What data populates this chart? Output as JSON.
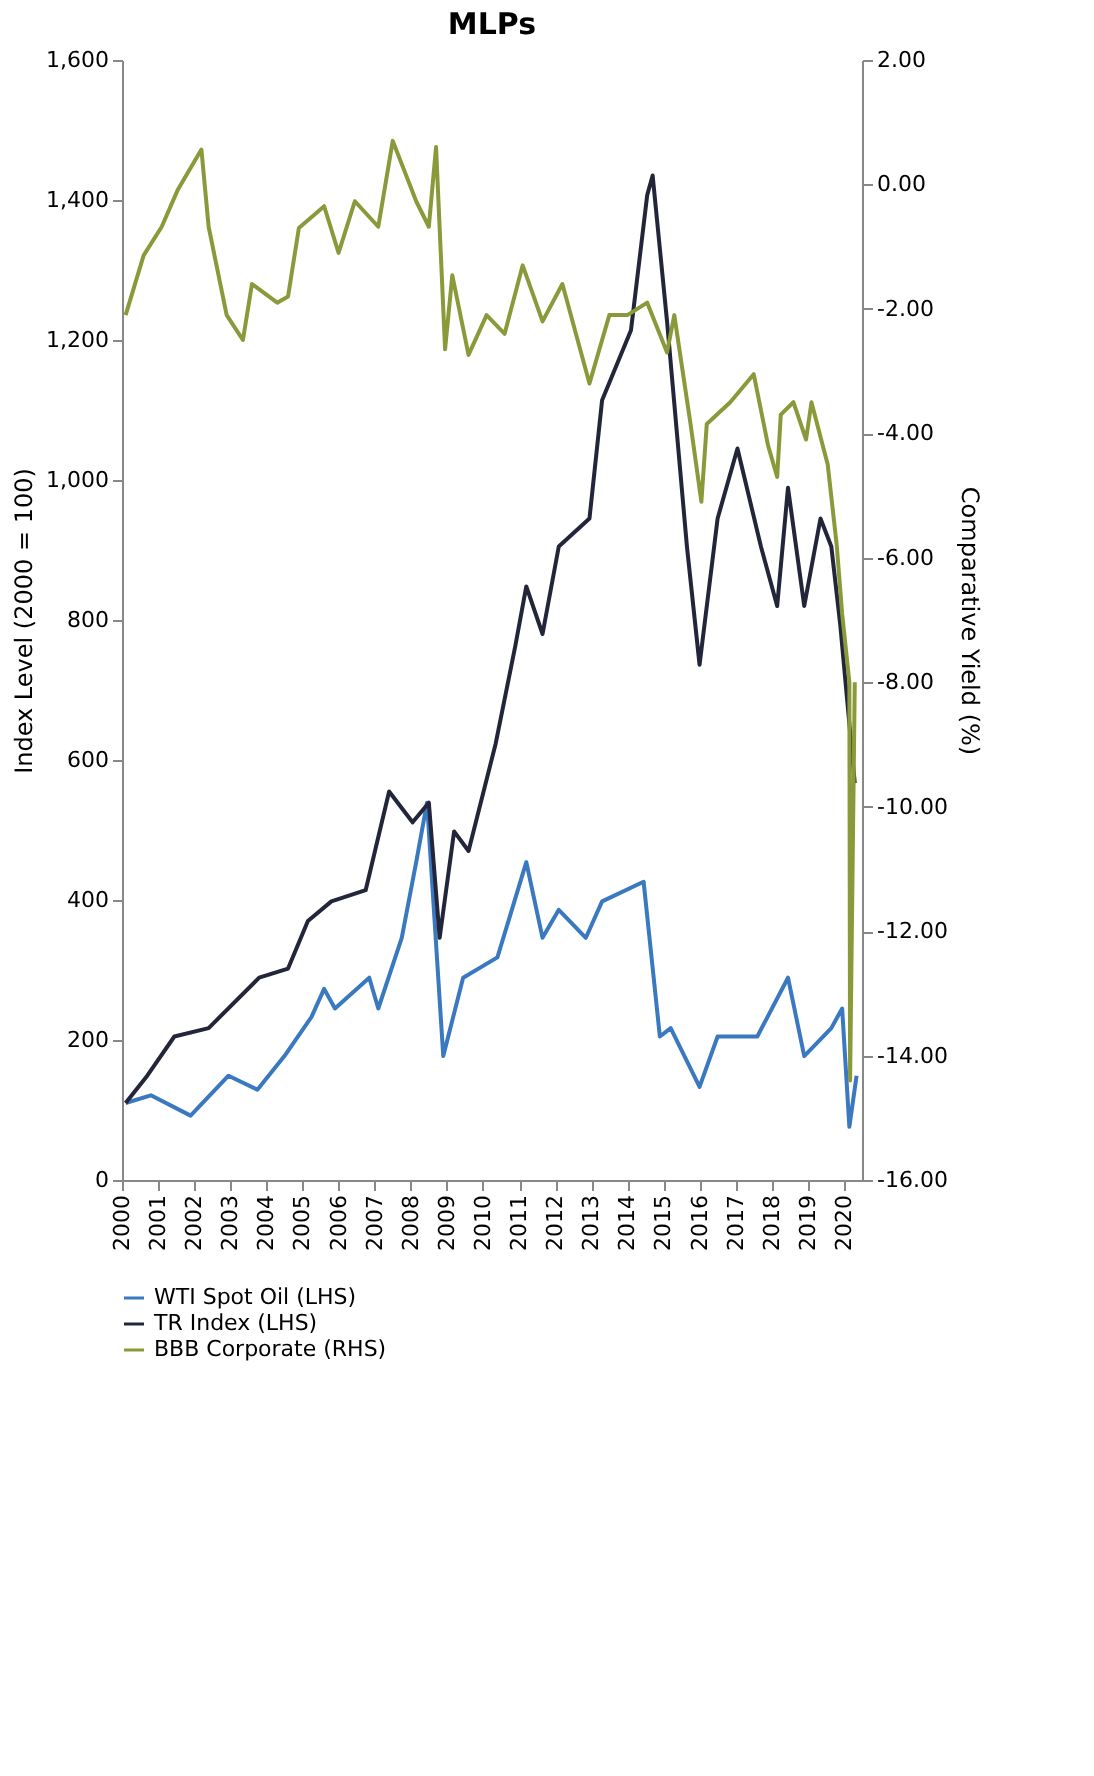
{
  "chart_data": {
    "type": "line",
    "title": "MLPs",
    "ylabel": "Index Level (2000 = 100)",
    "y2label": "Comparative Yield (%)",
    "xlim": [
      2000,
      2020.5
    ],
    "xticks": [
      2000,
      2001,
      2002,
      2003,
      2004,
      2005,
      2006,
      2007,
      2008,
      2009,
      2010,
      2011,
      2012,
      2013,
      2014,
      2015,
      2016,
      2017,
      2018,
      2019,
      2020
    ],
    "ylim": [
      0,
      1600
    ],
    "yticks": [
      {
        "value": 0,
        "label": "0"
      },
      {
        "value": 200,
        "label": "200"
      },
      {
        "value": 400,
        "label": "400"
      },
      {
        "value": 600,
        "label": "600"
      },
      {
        "value": 800,
        "label": "800"
      },
      {
        "value": 1000,
        "label": "1,000"
      },
      {
        "value": 1200,
        "label": "1,200"
      },
      {
        "value": 1400,
        "label": "1,400"
      },
      {
        "value": 1600,
        "label": "1,600"
      }
    ],
    "y2lim": [
      -16,
      2
    ],
    "y2ticks": [
      {
        "value": -16,
        "label": "-16.00"
      },
      {
        "value": -14,
        "label": "-14.00"
      },
      {
        "value": -12,
        "label": "-12.00"
      },
      {
        "value": -10,
        "label": "-10.00"
      },
      {
        "value": -8,
        "label": "-8.00"
      },
      {
        "value": -6,
        "label": "-6.00"
      },
      {
        "value": -4,
        "label": "-4.00"
      },
      {
        "value": -2,
        "label": "-2.00"
      },
      {
        "value": 0,
        "label": "0.00"
      },
      {
        "value": 2,
        "label": "2.00"
      }
    ],
    "grid": false,
    "legend": "bottom",
    "series": [
      {
        "name": "WTI Spot Oil (LHS)",
        "color": "#3a78c0",
        "x": [
          2000.1,
          2000.8,
          2001.9,
          2002.95,
          2003.75,
          2004.5,
          2005.25,
          2005.6,
          2005.9,
          2006.85,
          2007.1,
          2007.75,
          2008.15,
          2008.45,
          2008.9,
          2009.45,
          2010.4,
          2011.2,
          2011.65,
          2012.1,
          2012.85,
          2013.3,
          2014.45,
          2014.9,
          2015.2,
          2016.0,
          2016.5,
          2017.6,
          2018.45,
          2018.9,
          2019.65,
          2019.95,
          2020.15,
          2020.35
        ],
        "values": [
          110,
          121,
          92,
          149,
          129,
          177,
          233,
          273,
          245,
          289,
          245,
          346,
          454,
          539,
          177,
          289,
          318,
          454,
          346,
          386,
          346,
          398,
          426,
          205,
          217,
          133,
          205,
          205,
          289,
          177,
          217,
          245,
          76,
          149
        ]
      },
      {
        "name": "TR Index (LHS)",
        "color": "#23263a",
        "x": [
          2000.1,
          2000.7,
          2001.45,
          2002.4,
          2003.8,
          2004.6,
          2005.15,
          2005.8,
          2006.75,
          2007.4,
          2008.05,
          2008.5,
          2008.8,
          2009.2,
          2009.6,
          2010.35,
          2010.9,
          2011.2,
          2011.65,
          2012.1,
          2012.95,
          2013.3,
          2014.1,
          2014.55,
          2014.7,
          2015.1,
          2015.65,
          2016.0,
          2016.5,
          2017.05,
          2017.7,
          2018.15,
          2018.45,
          2018.9,
          2019.35,
          2019.65,
          2019.9,
          2020.3
        ],
        "values": [
          110,
          149,
          205,
          217,
          289,
          302,
          370,
          398,
          414,
          555,
          511,
          539,
          346,
          498,
          470,
          623,
          764,
          848,
          780,
          905,
          945,
          1114,
          1214,
          1407,
          1435,
          1226,
          905,
          736,
          945,
          1045,
          905,
          820,
          989,
          820,
          945,
          905,
          792,
          567
        ]
      },
      {
        "name": "BBB Corporate (RHS)",
        "color": "#8a9a3a",
        "axis": "y2",
        "x": [
          2000.1,
          2000.6,
          2001.1,
          2001.55,
          2002.2,
          2002.4,
          2002.9,
          2003.35,
          2003.6,
          2004.3,
          2004.6,
          2004.9,
          2005.6,
          2006.0,
          2006.45,
          2007.1,
          2007.5,
          2008.15,
          2008.5,
          2008.7,
          2008.95,
          2009.15,
          2009.6,
          2010.1,
          2010.6,
          2011.1,
          2011.65,
          2012.2,
          2012.95,
          2013.5,
          2014.0,
          2014.55,
          2015.1,
          2015.3,
          2015.75,
          2016.05,
          2016.2,
          2016.85,
          2017.5,
          2017.9,
          2018.15,
          2018.25,
          2018.6,
          2018.95,
          2019.1,
          2019.55,
          2019.8,
          2019.95,
          2020.15,
          2020.17,
          2020.3
        ],
        "values": [
          -2.1,
          -1.14,
          -0.68,
          -0.08,
          0.56,
          -0.68,
          -2.1,
          -2.5,
          -1.6,
          -1.9,
          -1.8,
          -0.7,
          -0.35,
          -1.1,
          -0.27,
          -0.68,
          0.7,
          -0.27,
          -0.68,
          0.6,
          -2.65,
          -1.46,
          -2.74,
          -2.1,
          -2.4,
          -1.3,
          -2.2,
          -1.6,
          -3.2,
          -2.1,
          -2.1,
          -1.9,
          -2.7,
          -2.1,
          -3.85,
          -5.1,
          -3.85,
          -3.5,
          -3.05,
          -4.2,
          -4.7,
          -3.7,
          -3.5,
          -4.1,
          -3.5,
          -4.5,
          -5.8,
          -6.9,
          -8.0,
          -14.4,
          -8.0
        ]
      }
    ]
  }
}
